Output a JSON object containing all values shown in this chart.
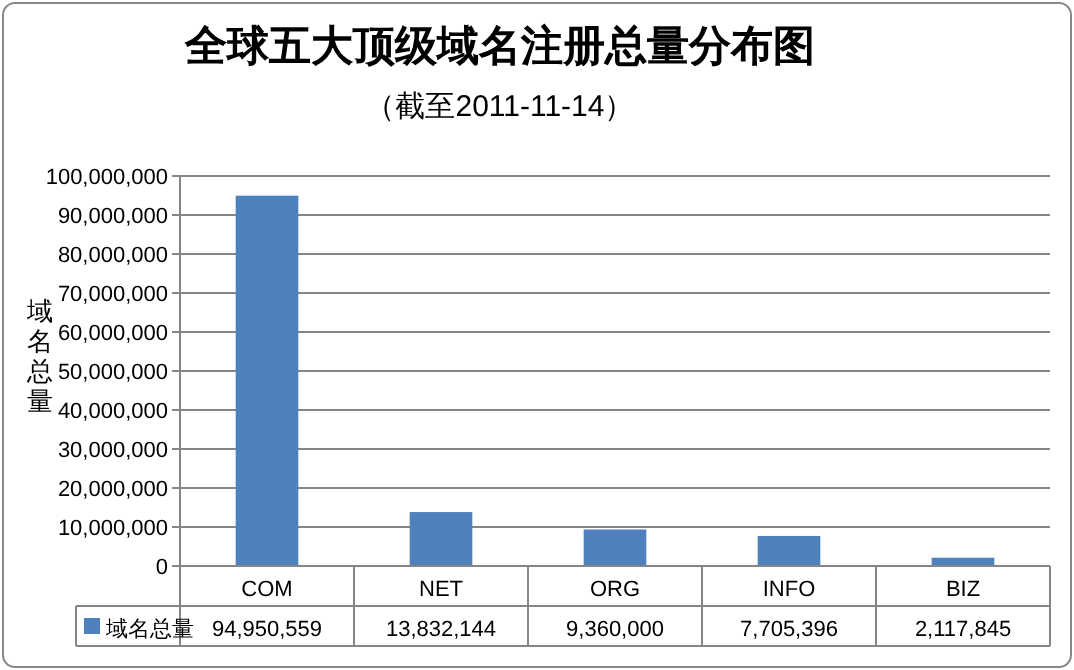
{
  "chart_data": {
    "type": "bar",
    "title": "全球五大顶级域名注册总量分布图",
    "subtitle": "（截至2011-11-14）",
    "ylabel": "域名总量",
    "categories": [
      "COM",
      "NET",
      "ORG",
      "INFO",
      "BIZ"
    ],
    "series": [
      {
        "name": "域名总量",
        "color": "#4f81bd",
        "values": [
          94950559,
          13832144,
          9360000,
          7705396,
          2117845
        ],
        "value_labels": [
          "94,950,559",
          "13,832,144",
          "9,360,000",
          "7,705,396",
          "2,117,845"
        ]
      }
    ],
    "ylim": [
      0,
      100000000
    ],
    "yticks": [
      0,
      {
        "value": 10000000,
        "label": "10,000,000"
      },
      {
        "value": 20000000,
        "label": "20,000,000"
      },
      {
        "value": 30000000,
        "label": "30,000,000"
      },
      {
        "value": 40000000,
        "label": "40,000,000"
      },
      {
        "value": 50000000,
        "label": "50,000,000"
      },
      {
        "value": 60000000,
        "label": "60,000,000"
      },
      {
        "value": 70000000,
        "label": "70,000,000"
      },
      {
        "value": 80000000,
        "label": "80,000,000"
      },
      {
        "value": 90000000,
        "label": "90,000,000"
      },
      {
        "value": 100000000,
        "label": "100,000,000"
      }
    ],
    "grid": "y",
    "legend": "bottom"
  }
}
